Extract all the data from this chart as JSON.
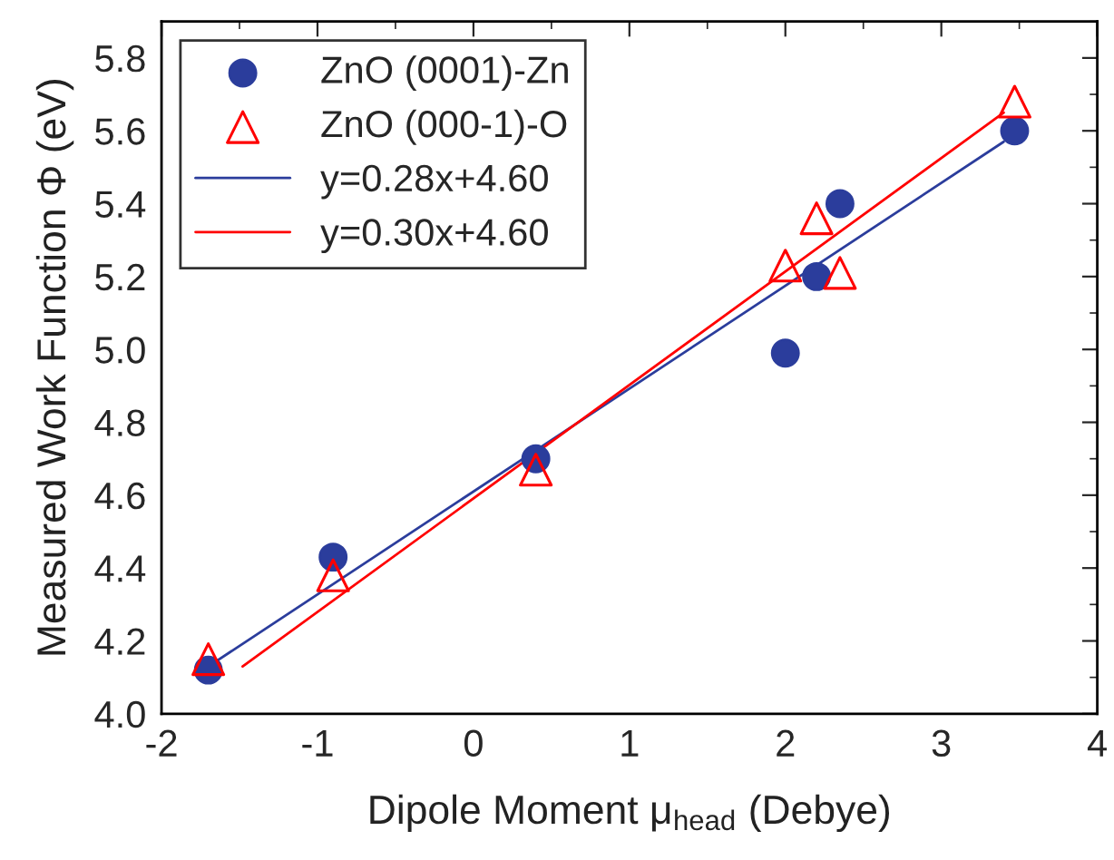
{
  "chart_data": {
    "type": "scatter",
    "xlabel": "Dipole Moment μ$_{head}$ (Debye)",
    "ylabel": "Measured Work Function Φ (eV)",
    "xlim": [
      -2,
      4
    ],
    "xticks": [
      -2,
      -1,
      0,
      1,
      2,
      3,
      4
    ],
    "ylim": [
      4.0,
      5.9
    ],
    "yticks": [
      {
        "value": 4.0,
        "label": "4.0"
      },
      4.2,
      4.4,
      4.6,
      4.8,
      {
        "value": 5.0,
        "label": "5.0"
      },
      5.2,
      5.4,
      5.6,
      5.8
    ],
    "legend": "top left",
    "grid": false,
    "series": [
      {
        "name": "ZnO (0001)-Zn",
        "marker": "circle",
        "color": "#2b3d9c",
        "x": [
          -1.7,
          -0.9,
          0.4,
          2.0,
          2.2,
          2.35,
          3.47
        ],
        "values": [
          4.12,
          4.43,
          4.7,
          4.99,
          5.2,
          5.4,
          5.6
        ]
      },
      {
        "name": "ZnO (000-1)-O",
        "marker": "triangle",
        "color": "#ff0000",
        "x": [
          -1.7,
          -0.9,
          0.4,
          2.0,
          2.2,
          2.35,
          3.47
        ],
        "values": [
          4.15,
          4.38,
          4.67,
          5.23,
          5.36,
          5.21,
          5.68
        ]
      },
      {
        "name": "y=0.28x+4.60",
        "type": "line",
        "color": "#2b3d9c",
        "x": [
          -1.7,
          3.4
        ],
        "values": [
          4.13,
          5.57
        ]
      },
      {
        "name": "y=0.30x+4.60",
        "type": "line",
        "color": "#ff0000",
        "x": [
          -1.48,
          3.4
        ],
        "values": [
          4.13,
          5.65
        ]
      }
    ]
  }
}
